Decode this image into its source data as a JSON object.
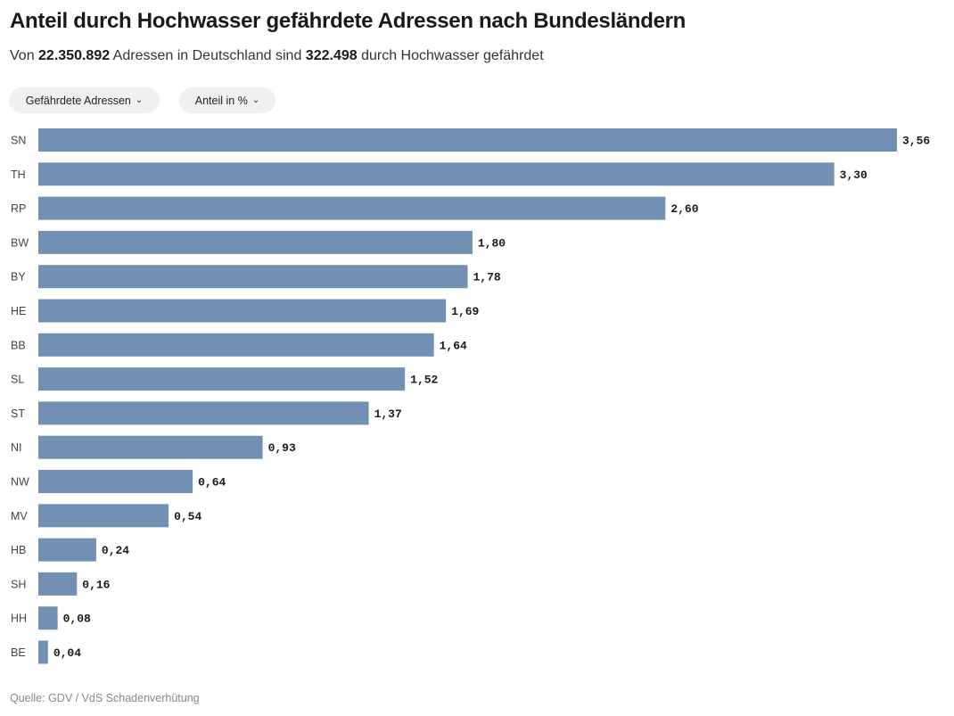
{
  "header": {
    "title": "Anteil durch Hochwasser gefährdete Adressen nach Bundesländern",
    "subtitle_parts": [
      "Von ",
      "22.350.892",
      " Adressen in Deutschland sind ",
      "322.498",
      " durch Hochwasser gefährdet"
    ]
  },
  "controls": {
    "dropdown_metric": "Gefährdete Adressen",
    "dropdown_unit": "Anteil in %"
  },
  "source": "Quelle: GDV / VdS Schadenverhütung",
  "colors": {
    "bar": "#7290b4",
    "label": "#1a1a1a"
  },
  "chart_data": {
    "type": "bar",
    "orientation": "horizontal",
    "title": "Anteil durch Hochwasser gefährdete Adressen nach Bundesländern",
    "xlabel": "Anteil in %",
    "ylabel": "",
    "xlim": [
      0,
      3.56
    ],
    "grid": false,
    "categories": [
      "SN",
      "TH",
      "RP",
      "BW",
      "BY",
      "HE",
      "BB",
      "SL",
      "ST",
      "NI",
      "NW",
      "MV",
      "HB",
      "SH",
      "HH",
      "BE"
    ],
    "values": [
      3.56,
      3.3,
      2.6,
      1.8,
      1.78,
      1.69,
      1.64,
      1.52,
      1.37,
      0.93,
      0.64,
      0.54,
      0.24,
      0.16,
      0.08,
      0.04
    ],
    "value_labels": [
      "3,56",
      "3,30",
      "2,60",
      "1,80",
      "1,78",
      "1,69",
      "1,64",
      "1,52",
      "1,37",
      "0,93",
      "0,64",
      "0,54",
      "0,24",
      "0,16",
      "0,08",
      "0,04"
    ]
  }
}
